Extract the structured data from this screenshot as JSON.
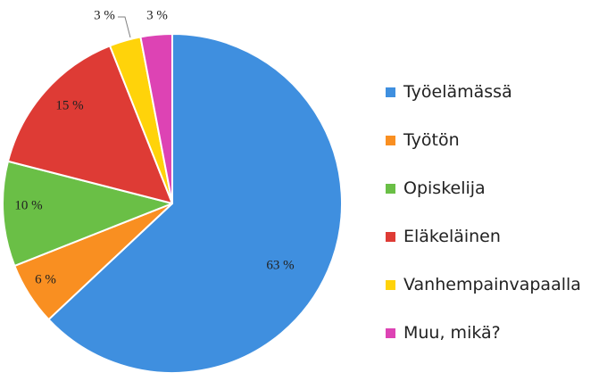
{
  "chart_data": {
    "type": "pie",
    "title": "",
    "categories": [
      "Työelämässä",
      "Työtön",
      "Opiskelija",
      "Eläkeläinen",
      "Vanhempainvapaalla",
      "Muu, mikä?"
    ],
    "values": [
      63,
      6,
      10,
      15,
      3,
      3
    ],
    "data_labels": [
      "63 %",
      "6 %",
      "10 %",
      "15 %",
      "3 %",
      "3 %"
    ],
    "colors": [
      "#3F8FDF",
      "#F98F21",
      "#6ABF46",
      "#DE3B35",
      "#FFD30A",
      "#DD43B4"
    ],
    "legend_position": "right"
  }
}
